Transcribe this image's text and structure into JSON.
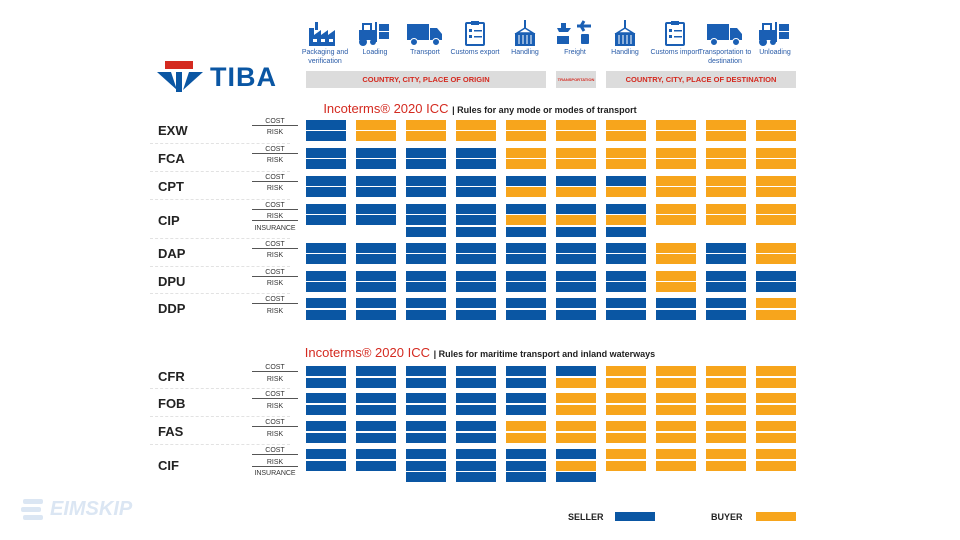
{
  "colors": {
    "seller": "#0a56a3",
    "buyer": "#f7a51c",
    "accent": "#d42a20",
    "icon": "#1a5fb4"
  },
  "logo": {
    "text": "TIBA"
  },
  "watermark": {
    "text": "EIMSKIP"
  },
  "steps": [
    {
      "label": "Packaging and verification",
      "icon": "factory-icon"
    },
    {
      "label": "Loading",
      "icon": "forklift-icon"
    },
    {
      "label": "Transport",
      "icon": "truck-icon"
    },
    {
      "label": "Customs export",
      "icon": "clipboard-icon"
    },
    {
      "label": "Handling",
      "icon": "crane-container-icon"
    },
    {
      "label": "Freight",
      "icon": "multimodal-freight-icon"
    },
    {
      "label": "Handling",
      "icon": "crane-container-icon"
    },
    {
      "label": "Customs import",
      "icon": "clipboard-icon"
    },
    {
      "label": "Transportation to destination",
      "icon": "truck-icon"
    },
    {
      "label": "Unloading",
      "icon": "forklift-icon"
    }
  ],
  "bands": {
    "origin": "COUNTRY, CITY, PLACE OF ORIGIN",
    "transport": "TRANSPORTATION",
    "destination": "COUNTRY, CITY, PLACE OF DESTINATION"
  },
  "sections": [
    {
      "title": "Incoterms® 2020 ICC",
      "subtitle": "| Rules for any mode or modes of transport",
      "terms": [
        {
          "name": "EXW",
          "rows": [
            {
              "label": "COST",
              "cells": "SBBBBBBBBB"
            },
            {
              "label": "RISK",
              "cells": "SBBBBBBBBB"
            }
          ]
        },
        {
          "name": "FCA",
          "rows": [
            {
              "label": "COST",
              "cells": "SSSSBBBBBB"
            },
            {
              "label": "RISK",
              "cells": "SSSSBBBBBB"
            }
          ]
        },
        {
          "name": "CPT",
          "rows": [
            {
              "label": "COST",
              "cells": "SSSSSSSBBB"
            },
            {
              "label": "RISK",
              "cells": "SSSSBBBBBB"
            }
          ]
        },
        {
          "name": "CIP",
          "rows": [
            {
              "label": "COST",
              "cells": "SSSSSSSBBB"
            },
            {
              "label": "RISK",
              "cells": "SSSSBBBBBB"
            },
            {
              "label": "INSURANCE",
              "cells": "--SSSSS---"
            }
          ]
        },
        {
          "name": "DAP",
          "rows": [
            {
              "label": "COST",
              "cells": "SSSSSSSBSB"
            },
            {
              "label": "RISK",
              "cells": "SSSSSSSBSB"
            }
          ]
        },
        {
          "name": "DPU",
          "rows": [
            {
              "label": "COST",
              "cells": "SSSSSSSBSS"
            },
            {
              "label": "RISK",
              "cells": "SSSSSSSBSS"
            }
          ]
        },
        {
          "name": "DDP",
          "rows": [
            {
              "label": "COST",
              "cells": "SSSSSSSSSB"
            },
            {
              "label": "RISK",
              "cells": "SSSSSSSSSB"
            }
          ]
        }
      ]
    },
    {
      "title": "Incoterms® 2020 ICC",
      "subtitle": "| Rules for maritime transport and inland waterways",
      "terms": [
        {
          "name": "CFR",
          "rows": [
            {
              "label": "COST",
              "cells": "SSSSSSBBBB"
            },
            {
              "label": "RISK",
              "cells": "SSSSSBBBBB"
            }
          ]
        },
        {
          "name": "FOB",
          "rows": [
            {
              "label": "COST",
              "cells": "SSSSSBBBBB"
            },
            {
              "label": "RISK",
              "cells": "SSSSSBBBBB"
            }
          ]
        },
        {
          "name": "FAS",
          "rows": [
            {
              "label": "COST",
              "cells": "SSSSBBBBBB"
            },
            {
              "label": "RISK",
              "cells": "SSSSBBBBBB"
            }
          ]
        },
        {
          "name": "CIF",
          "rows": [
            {
              "label": "COST",
              "cells": "SSSSSSBBBB"
            },
            {
              "label": "RISK",
              "cells": "SSSSSBBBBB"
            },
            {
              "label": "INSURANCE",
              "cells": "--SSSS----"
            }
          ]
        }
      ]
    }
  ],
  "legend": {
    "seller": "SELLER",
    "buyer": "BUYER"
  }
}
